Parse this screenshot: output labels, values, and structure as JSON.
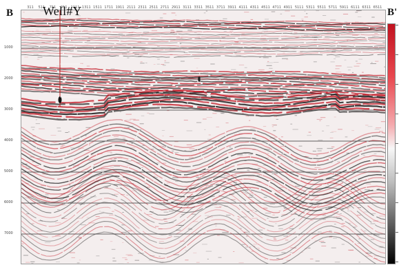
{
  "title": {
    "left_marker": "B",
    "right_marker": "B'",
    "well_label": "Well#Y"
  },
  "axes": {
    "trace_ticks": [
      "311",
      "511",
      "711",
      "911",
      "1111",
      "1311",
      "1511",
      "1711",
      "1911",
      "2111",
      "2311",
      "2511",
      "2711",
      "2911",
      "3111",
      "3311",
      "3511",
      "3711",
      "3911",
      "4111",
      "4311",
      "4511",
      "4711",
      "4911",
      "5111",
      "5311",
      "5511",
      "5711",
      "5911",
      "6111",
      "6311",
      "6511"
    ],
    "time_ticks": [
      "1000",
      "2000",
      "3000",
      "4000",
      "5000",
      "6000",
      "7000"
    ]
  },
  "colors": {
    "positive": "#c1121f",
    "negative": "#111111",
    "background": "#f4eeee",
    "horizon_lines": "#3a3a3a",
    "well_track": "#b71c1c"
  },
  "icons": [
    "colorbar-scale-icon"
  ]
}
